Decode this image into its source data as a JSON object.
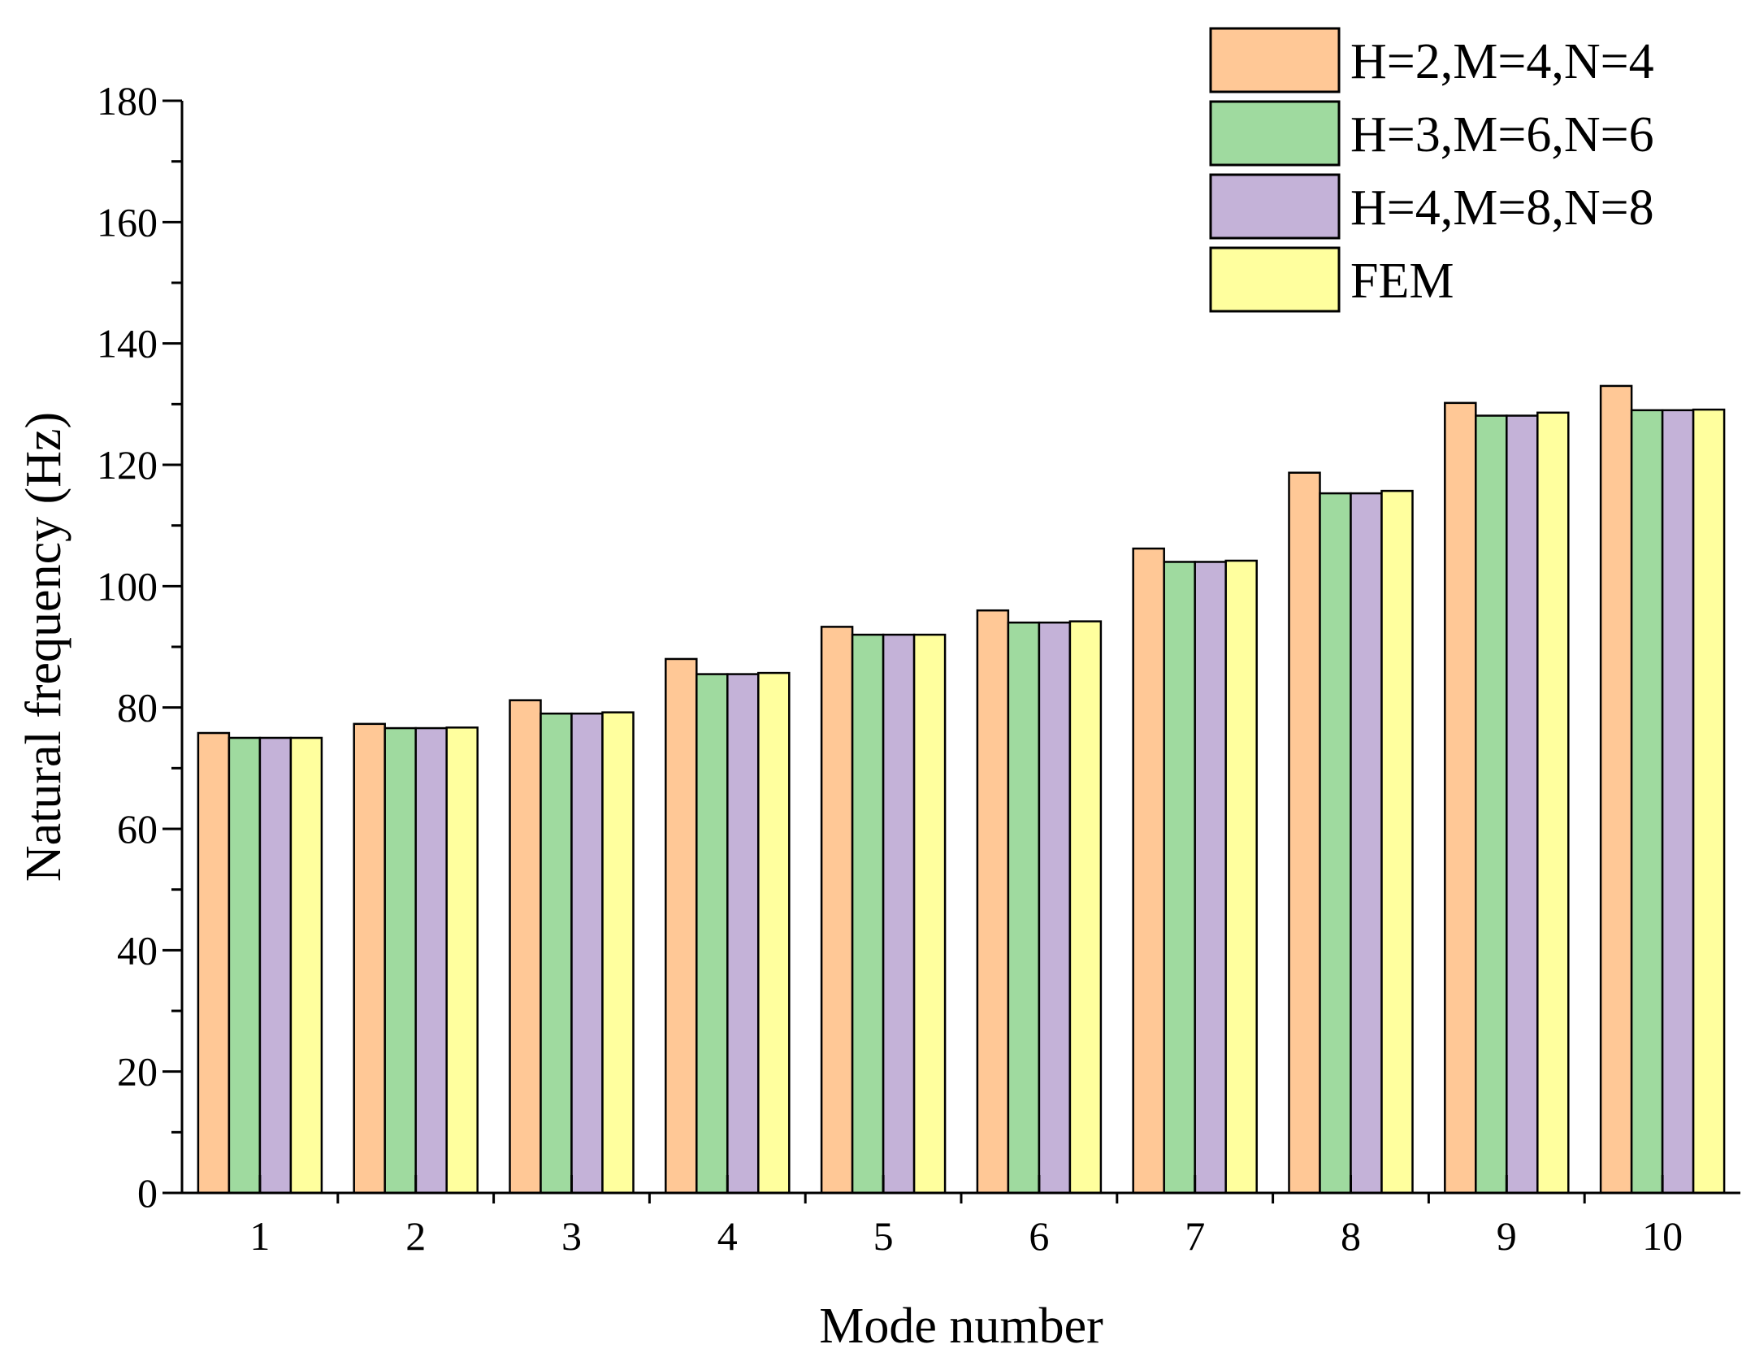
{
  "chart_data": {
    "type": "bar",
    "title": "",
    "xlabel": "Mode number",
    "ylabel": "Natural frequency (Hz)",
    "categories": [
      "1",
      "2",
      "3",
      "4",
      "5",
      "6",
      "7",
      "8",
      "9",
      "10"
    ],
    "ylim": [
      0,
      180
    ],
    "yticks": [
      "0",
      "20",
      "40",
      "60",
      "80",
      "100",
      "120",
      "140",
      "160",
      "180"
    ],
    "grid": false,
    "legend_position": "top-right",
    "series": [
      {
        "name": "H=2,M=4,N=4",
        "color": "#FFC896",
        "values": [
          75.8,
          77.3,
          81.2,
          88.0,
          93.3,
          96.0,
          106.2,
          118.7,
          130.2,
          133.0
        ]
      },
      {
        "name": "H=3,M=6,N=6",
        "color": "#9FDA9F",
        "values": [
          75.0,
          76.6,
          79.0,
          85.5,
          92.0,
          94.0,
          104.0,
          115.3,
          128.1,
          129.0
        ]
      },
      {
        "name": "H=4,M=8,N=8",
        "color": "#C4B2D8",
        "values": [
          75.0,
          76.6,
          79.0,
          85.5,
          92.0,
          94.0,
          104.0,
          115.3,
          128.1,
          129.0
        ]
      },
      {
        "name": "FEM",
        "color": "#FFFF9E",
        "values": [
          75.0,
          76.7,
          79.2,
          85.7,
          92.0,
          94.2,
          104.2,
          115.7,
          128.6,
          129.1
        ]
      }
    ]
  }
}
